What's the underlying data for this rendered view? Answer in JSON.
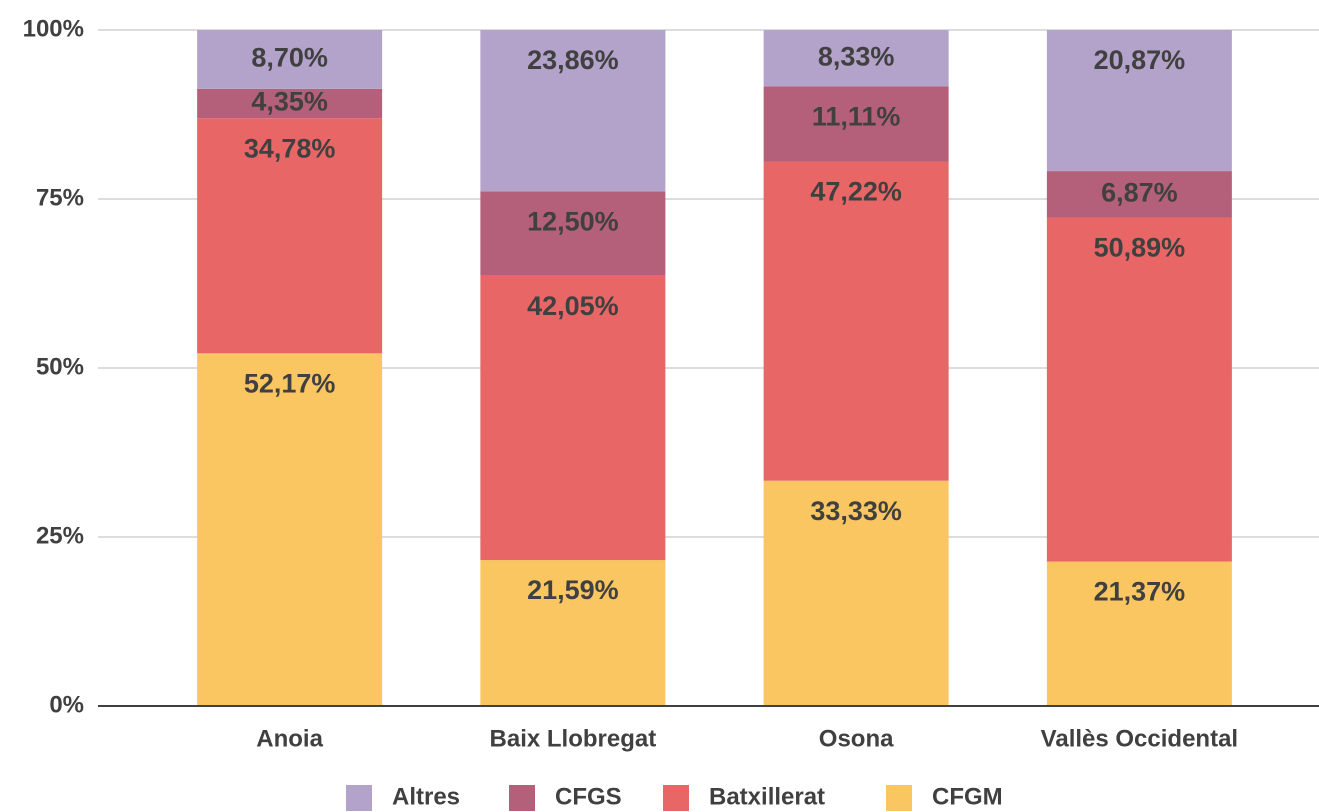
{
  "chart_data": {
    "type": "stacked_bar",
    "categories": [
      "Anoia",
      "Baix Llobregat",
      "Osona",
      "Vallès Occidental"
    ],
    "series": [
      {
        "name": "CFGM",
        "color": "#f9c662",
        "values": [
          52.17,
          21.59,
          33.33,
          21.37
        ],
        "value_labels": [
          "52,17%",
          "21,59%",
          "33,33%",
          "21,37%"
        ]
      },
      {
        "name": "Batxillerat",
        "color": "#e86666",
        "values": [
          34.78,
          42.05,
          47.22,
          50.89
        ],
        "value_labels": [
          "34,78%",
          "42,05%",
          "47,22%",
          "50,89%"
        ]
      },
      {
        "name": "CFGS",
        "color": "#b5607a",
        "values": [
          4.35,
          12.5,
          11.11,
          6.87
        ],
        "value_labels": [
          "4,35%",
          "12,50%",
          "11,11%",
          "6,87%"
        ]
      },
      {
        "name": "Altres",
        "color": "#b3a2c9",
        "values": [
          8.7,
          23.86,
          8.33,
          20.87
        ],
        "value_labels": [
          "8,70%",
          "23,86%",
          "8,33%",
          "20,87%"
        ]
      }
    ],
    "ylim": [
      0,
      100
    ],
    "yticks": [
      {
        "value": 0,
        "label": "0%"
      },
      {
        "value": 25,
        "label": "25%"
      },
      {
        "value": 50,
        "label": "50%"
      },
      {
        "value": 75,
        "label": "75%"
      },
      {
        "value": 100,
        "label": "100%"
      }
    ],
    "grid": true,
    "legend": "bottom"
  }
}
